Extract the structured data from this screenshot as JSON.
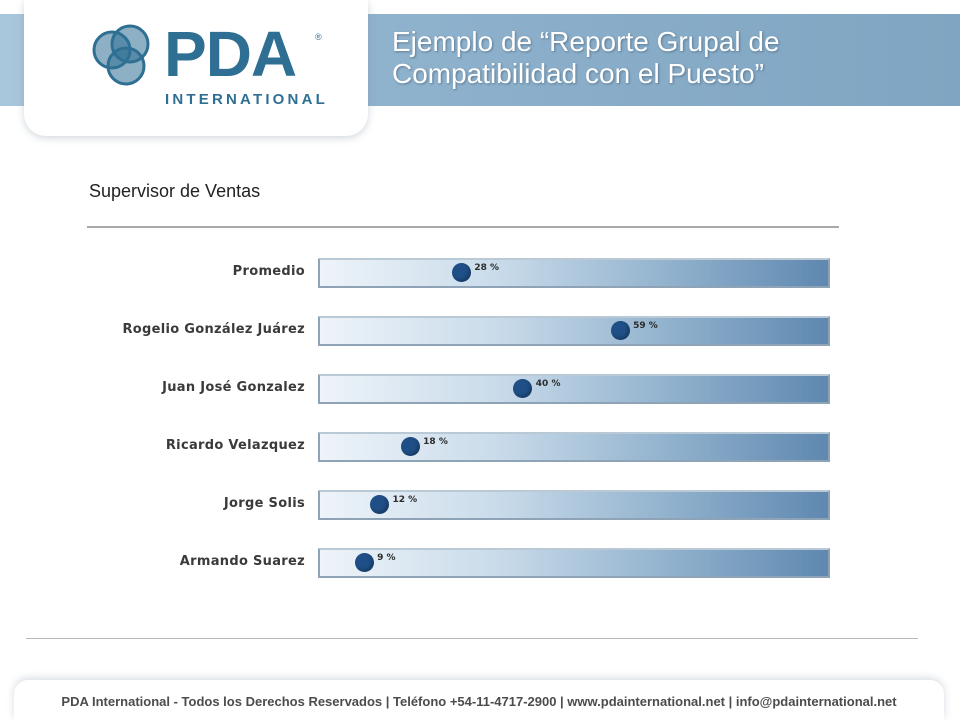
{
  "header": {
    "logo_text": "PDA",
    "logo_registered": "®",
    "logo_sub": "INTERNATIONAL",
    "title": "Ejemplo de “Reporte Grupal de Compatibilidad con el Puesto”"
  },
  "chart_data": {
    "type": "bar",
    "title": "Supervisor de Ventas",
    "categories": [
      "Promedio",
      "Rogelio González Juárez",
      "Juan José Gonzalez",
      "Ricardo Velazquez",
      "Jorge Solis",
      "Armando Suarez"
    ],
    "values": [
      28,
      59,
      40,
      18,
      12,
      9
    ],
    "value_labels": [
      "28 %",
      "59 %",
      "40 %",
      "18 %",
      "12 %",
      "9 %"
    ],
    "ylim": [
      0,
      100
    ],
    "orientation": "horizontal"
  },
  "colors": {
    "accent": "#2f6f94",
    "header_band": "#8fb2cd",
    "marker": "#1f4f86"
  },
  "footer": {
    "text": "PDA International - Todos los Derechos Reservados | Teléfono +54-11-4717-2900 | www.pdainternational.net  | info@pdainternational.net"
  }
}
